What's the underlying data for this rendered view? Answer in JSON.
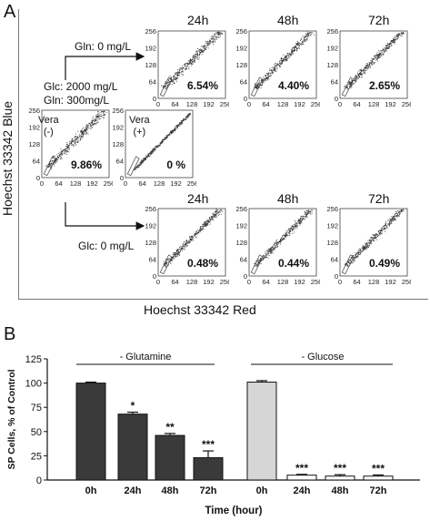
{
  "panel_a": {
    "letter": "A",
    "y_axis_title": "Hoechst 33342 Blue",
    "x_axis_title": "Hoechst 33342 Red",
    "upper_condition": "Gln: 0 mg/L",
    "baseline_condition": "Glc: 2000 mg/L\nGln: 300mg/L",
    "lower_condition": "Glc: 0 mg/L",
    "control_neg_label": "Vera\n(-)",
    "control_pos_label": "Vera\n(+)",
    "time_labels": [
      "24h",
      "48h",
      "72h"
    ]
  },
  "panel_b": {
    "letter": "B",
    "group_glutamine": "- Glutamine",
    "group_glucose": "- Glucose"
  },
  "chart_data": [
    {
      "type": "scatter",
      "panel": "A",
      "axes": {
        "x_ticks": [
          "0",
          "64",
          "128",
          "192",
          "256"
        ],
        "y_ticks": [
          "64",
          "128",
          "192",
          "256"
        ],
        "xlim": [
          0,
          256
        ],
        "ylim": [
          0,
          256
        ]
      },
      "plots": [
        {
          "condition": "Gln: 0 mg/L",
          "time": "24h",
          "sp_percent": "6.54%",
          "spread": 0.3
        },
        {
          "condition": "Gln: 0 mg/L",
          "time": "48h",
          "sp_percent": "4.40%",
          "spread": 0.26
        },
        {
          "condition": "Gln: 0 mg/L",
          "time": "72h",
          "sp_percent": "2.65%",
          "spread": 0.24
        },
        {
          "condition": "Vera (-)",
          "time": "",
          "sp_percent": "9.86%",
          "spread": 0.32
        },
        {
          "condition": "Vera (+)",
          "time": "",
          "sp_percent": "0 %",
          "spread": 0.12
        },
        {
          "condition": "Glc: 0 mg/L",
          "time": "24h",
          "sp_percent": "0.48%",
          "spread": 0.24
        },
        {
          "condition": "Glc: 0 mg/L",
          "time": "48h",
          "sp_percent": "0.44%",
          "spread": 0.24
        },
        {
          "condition": "Glc: 0 mg/L",
          "time": "72h",
          "sp_percent": "0.49%",
          "spread": 0.24
        }
      ]
    },
    {
      "type": "bar",
      "panel": "B",
      "ylabel": "SP Cells, % of Control",
      "xlabel": "Time (hour)",
      "ylim": [
        0,
        125
      ],
      "yticks": [
        "0",
        "25",
        "50",
        "75",
        "100",
        "125"
      ],
      "categories": [
        "0h",
        "24h",
        "48h",
        "72h",
        "0h",
        "24h",
        "48h",
        "72h"
      ],
      "values": [
        100,
        68,
        46,
        23,
        101,
        5,
        4,
        4
      ],
      "errors": [
        1,
        2,
        2,
        7,
        1.5,
        0.8,
        1.5,
        1.2
      ],
      "significance": [
        "",
        "*",
        "**",
        "***",
        "",
        "***",
        "***",
        "***"
      ],
      "colors": [
        "#3a3a3a",
        "#3a3a3a",
        "#3a3a3a",
        "#3a3a3a",
        "#d6d6d6",
        "#ffffff",
        "#ffffff",
        "#ffffff"
      ]
    }
  ]
}
